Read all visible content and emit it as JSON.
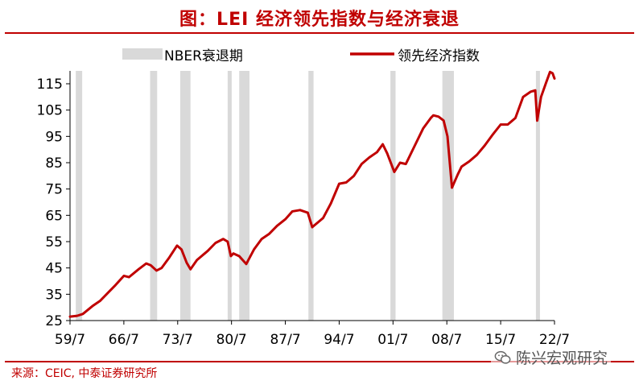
{
  "title": "图：LEI 经济领先指数与经济衰退",
  "source": "来源：CEIC, 中泰证券研究所",
  "watermark": "陈兴宏观研究",
  "colors": {
    "accent": "#c00000",
    "recession": "#d9d9d9"
  },
  "chart_data": {
    "type": "line",
    "title": "",
    "xlabel": "",
    "ylabel": "",
    "ylim": [
      25,
      120
    ],
    "yticks": [
      25,
      35,
      45,
      55,
      65,
      75,
      85,
      95,
      105,
      115
    ],
    "xticks": [
      "59/7",
      "66/7",
      "73/7",
      "80/7",
      "87/7",
      "94/7",
      "01/7",
      "08/7",
      "15/7",
      "22/7"
    ],
    "legend_position": "top",
    "legend": {
      "recession": "NBER衰退期",
      "line": "领先经济指数"
    },
    "recessions": [
      [
        "1960-04",
        "1961-02"
      ],
      [
        "1969-12",
        "1970-11"
      ],
      [
        "1973-11",
        "1975-03"
      ],
      [
        "1980-01",
        "1980-07"
      ],
      [
        "1981-07",
        "1982-11"
      ],
      [
        "1990-07",
        "1991-03"
      ],
      [
        "2001-03",
        "2001-11"
      ],
      [
        "2007-12",
        "2009-06"
      ],
      [
        "2020-02",
        "2020-04"
      ]
    ],
    "series": [
      {
        "name": "领先经济指数",
        "points": [
          [
            "1959-07",
            26.5
          ],
          [
            "1960-06",
            26.8
          ],
          [
            "1961-03",
            27.5
          ],
          [
            "1962-06",
            30.5
          ],
          [
            "1963-06",
            32.5
          ],
          [
            "1964-06",
            35.5
          ],
          [
            "1965-06",
            38.5
          ],
          [
            "1966-07",
            42.0
          ],
          [
            "1967-03",
            41.5
          ],
          [
            "1968-06",
            44.5
          ],
          [
            "1969-06",
            46.7
          ],
          [
            "1970-01",
            46.0
          ],
          [
            "1970-10",
            44.0
          ],
          [
            "1971-06",
            45.0
          ],
          [
            "1972-06",
            49.0
          ],
          [
            "1973-06",
            53.5
          ],
          [
            "1974-01",
            52.0
          ],
          [
            "1974-09",
            47.0
          ],
          [
            "1975-03",
            44.5
          ],
          [
            "1976-01",
            48.0
          ],
          [
            "1977-06",
            51.5
          ],
          [
            "1978-06",
            54.5
          ],
          [
            "1979-06",
            56.0
          ],
          [
            "1980-01",
            55.0
          ],
          [
            "1980-06",
            49.5
          ],
          [
            "1980-10",
            50.5
          ],
          [
            "1981-07",
            49.5
          ],
          [
            "1982-06",
            46.5
          ],
          [
            "1983-06",
            52.0
          ],
          [
            "1984-06",
            56.0
          ],
          [
            "1985-06",
            58.0
          ],
          [
            "1986-06",
            61.0
          ],
          [
            "1987-07",
            63.5
          ],
          [
            "1988-06",
            66.5
          ],
          [
            "1989-06",
            67.0
          ],
          [
            "1990-06",
            66.0
          ],
          [
            "1991-01",
            60.5
          ],
          [
            "1992-06",
            64.0
          ],
          [
            "1993-06",
            69.5
          ],
          [
            "1994-07",
            77.0
          ],
          [
            "1995-06",
            77.5
          ],
          [
            "1996-06",
            80.0
          ],
          [
            "1997-06",
            84.5
          ],
          [
            "1998-06",
            87.0
          ],
          [
            "1999-06",
            89.0
          ],
          [
            "2000-03",
            92.0
          ],
          [
            "2000-10",
            88.5
          ],
          [
            "2001-09",
            81.5
          ],
          [
            "2002-06",
            85.0
          ],
          [
            "2003-03",
            84.5
          ],
          [
            "2004-06",
            92.0
          ],
          [
            "2005-06",
            98.0
          ],
          [
            "2006-06",
            102.0
          ],
          [
            "2006-10",
            103.0
          ],
          [
            "2007-06",
            102.5
          ],
          [
            "2008-02",
            101.0
          ],
          [
            "2008-08",
            95.0
          ],
          [
            "2009-03",
            75.5
          ],
          [
            "2009-12",
            80.5
          ],
          [
            "2010-06",
            83.5
          ],
          [
            "2011-06",
            85.5
          ],
          [
            "2012-06",
            88.0
          ],
          [
            "2013-06",
            91.5
          ],
          [
            "2014-06",
            95.5
          ],
          [
            "2015-07",
            99.5
          ],
          [
            "2016-06",
            99.5
          ],
          [
            "2017-06",
            102.0
          ],
          [
            "2018-06",
            110.0
          ],
          [
            "2019-06",
            112.0
          ],
          [
            "2020-01",
            112.5
          ],
          [
            "2020-04",
            101.0
          ],
          [
            "2020-10",
            110.0
          ],
          [
            "2021-06",
            115.5
          ],
          [
            "2021-12",
            119.5
          ],
          [
            "2022-04",
            119.0
          ],
          [
            "2022-07",
            117.0
          ]
        ]
      }
    ]
  }
}
